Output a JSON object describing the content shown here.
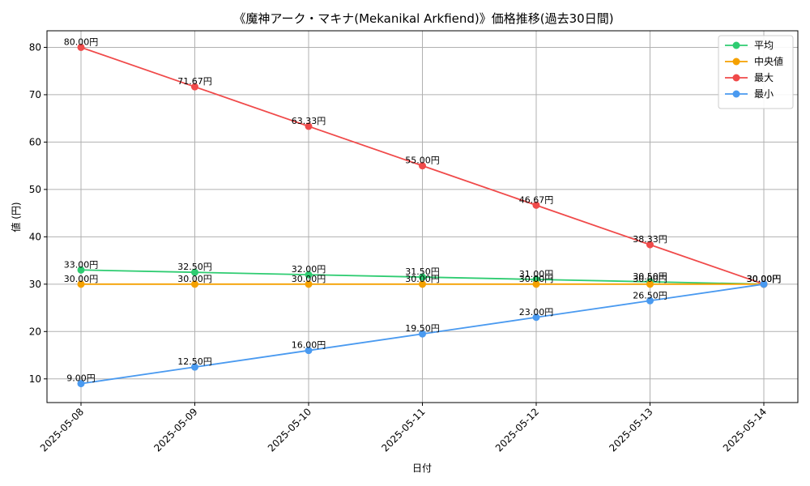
{
  "chart_data": {
    "type": "line",
    "title": "《魔神アーク・マキナ(Mekanikal Arkfiend)》価格推移(過去30日間)",
    "xlabel": "日付",
    "ylabel": "値 (円)",
    "categories": [
      "2025-05-08",
      "2025-05-09",
      "2025-05-10",
      "2025-05-11",
      "2025-05-12",
      "2025-05-13",
      "2025-05-14"
    ],
    "ylim": [
      5,
      83.5
    ],
    "yticks": [
      10,
      20,
      30,
      40,
      50,
      60,
      70,
      80
    ],
    "grid": true,
    "legend_position": "top-right",
    "unit_suffix": "円",
    "series": [
      {
        "name": "平均",
        "color": "#2ecc71",
        "values": [
          33.0,
          32.5,
          32.0,
          31.5,
          31.0,
          30.5,
          30.0
        ],
        "labels": [
          "33.00円",
          "32.50円",
          "32.00円",
          "31.50円",
          "31.00円",
          "30.50円",
          "30.00円"
        ]
      },
      {
        "name": "中央値",
        "color": "#f5a100",
        "values": [
          30.0,
          30.0,
          30.0,
          30.0,
          30.0,
          30.0,
          30.0
        ],
        "labels": [
          "30.00円",
          "30.00円",
          "30.00円",
          "30.00円",
          "30.00円",
          "30.00円",
          "30.00円"
        ]
      },
      {
        "name": "最大",
        "color": "#f04a4a",
        "values": [
          80.0,
          71.67,
          63.33,
          55.0,
          46.67,
          38.33,
          30.0
        ],
        "labels": [
          "80.00円",
          "71.67円",
          "63.33円",
          "55.00円",
          "46.67円",
          "38.33円",
          "30.00円"
        ]
      },
      {
        "name": "最小",
        "color": "#4a9af0",
        "values": [
          9.0,
          12.5,
          16.0,
          19.5,
          23.0,
          26.5,
          30.0
        ],
        "labels": [
          "9.00円",
          "12.50円",
          "16.00円",
          "19.50円",
          "23.00円",
          "26.50円",
          "30.00円"
        ]
      }
    ]
  }
}
